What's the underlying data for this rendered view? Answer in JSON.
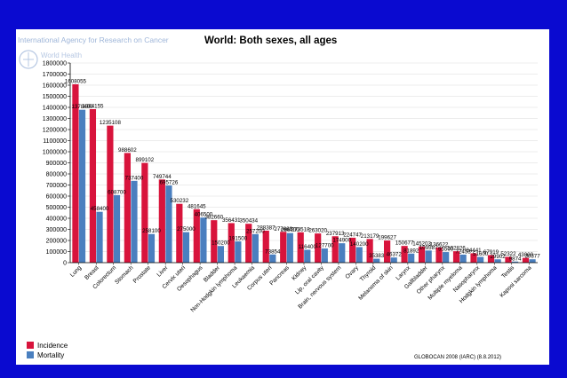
{
  "agency_name": "International Agency for Research on Cancer",
  "who_label": "World Health",
  "globocan": "GLOBOCAN 2008 (IARC) (8.8.2012)",
  "chart_data": {
    "type": "bar",
    "title": "World: Both sexes, all ages",
    "xlabel": "",
    "ylabel": "",
    "ylim": [
      0,
      1800000
    ],
    "yticks": [
      0,
      100000,
      200000,
      300000,
      400000,
      500000,
      600000,
      700000,
      800000,
      900000,
      1000000,
      1100000,
      1200000,
      1300000,
      1400000,
      1500000,
      1600000,
      1700000,
      1800000
    ],
    "ytick_labels": [
      "0",
      "100000",
      "200000",
      "300000",
      "400000",
      "500000",
      "600000",
      "700000",
      "800000",
      "900000",
      "1000000",
      "1100000",
      "1200000",
      "1300000",
      "1400000",
      "1500000",
      "1600000",
      "1700000",
      "1800000"
    ],
    "legend_position": "bottom-left",
    "categories": [
      "Lung",
      "Breast",
      "Colorectum",
      "Stomach",
      "Prostate",
      "Liver",
      "Cervix uteri",
      "Oesophagus",
      "Bladder",
      "Non-Hodgkin lymphoma",
      "Leukaemia",
      "Corpus uteri",
      "Pancreas",
      "Kidney",
      "Lip, oral cavity",
      "Brain, nervous system",
      "Ovary",
      "Thyroid",
      "Melanoma of skin",
      "Larynx",
      "Gallbladder",
      "Other pharynx",
      "Multiple myeloma",
      "Nasopharynx",
      "Hodgkin lymphoma",
      "Testis",
      "Kaposi sarcoma"
    ],
    "series": [
      {
        "name": "Incidence",
        "color": "#d8143c",
        "values": [
          1608055,
          1384155,
          1235108,
          988602,
          899102,
          749744,
          530232,
          481645,
          382660,
          356431,
          350434,
          288387,
          277668,
          273518,
          263020,
          237913,
          224747,
          213179,
          199627,
          150677,
          145203,
          136622,
          102826,
          84441,
          67919,
          52322,
          43000
        ],
        "labels": [
          "1608055",
          "1384155",
          "1235108",
          "988602",
          "899102",
          "749744",
          "530232",
          "481645",
          "382660",
          "356431",
          "350434",
          "288387",
          "277668",
          "273518",
          "263020",
          "237913",
          "224747",
          "213179",
          "199627",
          "150677",
          "145203",
          "136622",
          "102826",
          "84441",
          "67919",
          "52322",
          "43000"
        ]
      },
      {
        "name": "Mortality",
        "color": "#4a7fbf",
        "values": [
          1378400,
          458400,
          608700,
          737400,
          258100,
          695726,
          275000,
          406500,
          150200,
          191500,
          257200,
          73854,
          266700,
          116400,
          127700,
          174900,
          140200,
          35383,
          46372,
          81892,
          109587,
          95500,
          72453,
          51600,
          29902,
          9874,
          30377
        ],
        "labels": [
          "1378400",
          "458400",
          "608700",
          "737400",
          "258100",
          "695726",
          "275000",
          "406500",
          "150200",
          "191500",
          "257200",
          "73854",
          "266700",
          "116400",
          "127700",
          "174900",
          "140200",
          "35383",
          "46372",
          "81892",
          "109587",
          "95500",
          "72453",
          "51600",
          "29902",
          "9874",
          "30377"
        ]
      }
    ]
  }
}
